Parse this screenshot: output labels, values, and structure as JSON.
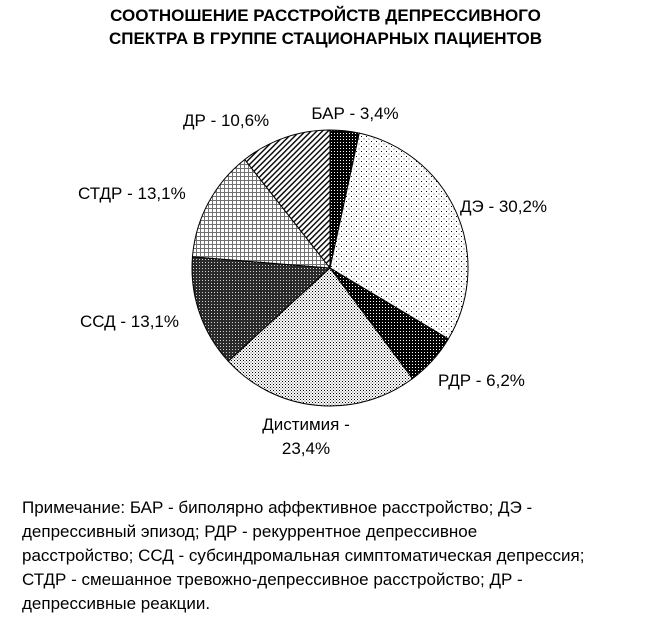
{
  "chart_data": {
    "type": "pie",
    "title_lines": [
      "СООТНОШЕНИЕ РАССТРОЙСТВ ДЕПРЕССИВНОГО",
      "СПЕКТРА В ГРУППЕ СТАЦИОНАРНЫХ ПАЦИЕНТОВ"
    ],
    "slices": [
      {
        "name": "БАР",
        "value": 3.4,
        "label": "БАР - 3,4%",
        "pattern": "dark-stipple"
      },
      {
        "name": "ДЭ",
        "value": 30.2,
        "label": "ДЭ - 30,2%",
        "pattern": "sparse-dots"
      },
      {
        "name": "РДР",
        "value": 6.2,
        "label": "РДР - 6,2%",
        "pattern": "dark-stipple"
      },
      {
        "name": "Дистимия",
        "value": 23.4,
        "label_lines": [
          "Дистимия -",
          "23,4%"
        ],
        "pattern": "dense-dots"
      },
      {
        "name": "ССД",
        "value": 13.1,
        "label": "ССД - 13,1%",
        "pattern": "dark-grid"
      },
      {
        "name": "СТДР",
        "value": 13.1,
        "label": "СТДР - 13,1%",
        "pattern": "light-grid"
      },
      {
        "name": "ДР",
        "value": 10.6,
        "label": "ДР - 10,6%",
        "pattern": "diagonal-lines"
      }
    ],
    "legend": "none"
  },
  "note_lines": [
    "Примечание: БАР - биполярно аффективное расстройство; ДЭ -",
    "депрессивный эпизод; РДР - рекуррентное депрессивное",
    "расстройство; ССД - субсиндромальная симптоматическая депрессия;",
    "СТДР - смешанное тревожно-депрессивное расстройство; ДР -",
    "депрессивные реакции."
  ]
}
